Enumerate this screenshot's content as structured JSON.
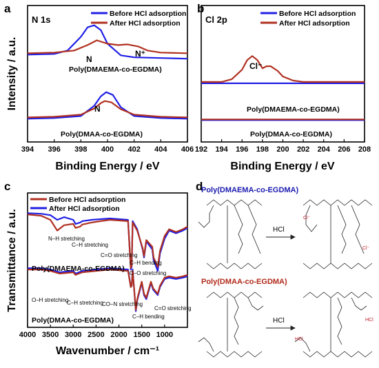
{
  "colors": {
    "before": "#1f1fe6",
    "after": "#b03020",
    "axis": "#000000",
    "blue_title": "#1a1ab0",
    "red_title": "#b02a1a"
  },
  "panels": {
    "a": {
      "letter": "a",
      "core": "N 1s",
      "legend": [
        "Before HCl adsorption",
        "After HCl adsorption"
      ],
      "sample_top": "Poly(DMAEMA-co-EGDMA)",
      "sample_bottom": "Poly(DMAA-co-EGDMA)",
      "peak_n_top": "N",
      "peak_nplus": "N⁺",
      "peak_n_bottom": "N"
    },
    "b": {
      "letter": "b",
      "core": "Cl 2p",
      "legend": [
        "Before HCl adsorption",
        "After HCl adsorption"
      ],
      "peak_cl": "Cl⁻",
      "sample_top": "Poly(DMAEMA-co-EGDMA)",
      "sample_bottom": "Poly(DMAA-co-EGDMA)"
    },
    "c": {
      "letter": "c",
      "legend": [
        "Before HCl adsorption",
        "After HCl adsorption"
      ],
      "sample_top": "Poly(DMAEMA-co-EGDMA)",
      "sample_bottom": "Poly(DMAA-co-EGDMA)",
      "annotations_top": [
        "N–H stretching",
        "C–H stretching",
        "C=O stretching",
        "C–H bending",
        "C–O stretching"
      ],
      "annotations_bottom": [
        "O–H stretching",
        "C–H stretching",
        "CO–N stretching",
        "C–H bending",
        "C=O stretching"
      ]
    },
    "d": {
      "letter": "d",
      "title_top": "Poly(DMAEMA-co-EGDMA)",
      "title_bottom": "Poly(DMAA-co-EGDMA)",
      "reagent": "HCl",
      "hcl_label": "HCl",
      "cl_minus": "Cl⁻"
    }
  },
  "chart_data": [
    {
      "type": "line",
      "panel": "a",
      "title": "N 1s",
      "xlabel": "Binding Energy / eV",
      "ylabel": "Intensity / a.u.",
      "xlim": [
        394,
        406
      ],
      "xticks": [
        394,
        396,
        398,
        400,
        402,
        404,
        406
      ],
      "x_reversed": false,
      "legend_position": "top-right",
      "series": [
        {
          "name": "Before HCl adsorption",
          "sample": "Poly(DMAEMA-co-EGDMA)",
          "x": [
            394,
            396,
            397,
            398,
            398.5,
            399,
            399.5,
            400,
            401,
            402,
            404,
            406
          ],
          "y": [
            0.64,
            0.645,
            0.67,
            0.77,
            0.84,
            0.855,
            0.82,
            0.72,
            0.635,
            0.62,
            0.615,
            0.61
          ]
        },
        {
          "name": "After HCl adsorption",
          "sample": "Poly(DMAEMA-co-EGDMA)",
          "x": [
            394,
            396,
            397.5,
            398.5,
            399.2,
            400,
            400.8,
            401.5,
            402.3,
            403,
            404,
            406
          ],
          "y": [
            0.65,
            0.655,
            0.67,
            0.71,
            0.745,
            0.72,
            0.71,
            0.715,
            0.7,
            0.67,
            0.655,
            0.65
          ]
        },
        {
          "name": "Before HCl adsorption",
          "sample": "Poly(DMAA-co-EGDMA)",
          "x": [
            394,
            396,
            398,
            399,
            399.5,
            399.9,
            400.4,
            401,
            402,
            404,
            406
          ],
          "y": [
            0.17,
            0.175,
            0.19,
            0.265,
            0.335,
            0.365,
            0.345,
            0.255,
            0.19,
            0.175,
            0.17
          ]
        },
        {
          "name": "After HCl adsorption",
          "sample": "Poly(DMAA-co-EGDMA)",
          "x": [
            394,
            396,
            398,
            399,
            399.5,
            399.8,
            400.3,
            401,
            402,
            404,
            406
          ],
          "y": [
            0.18,
            0.185,
            0.2,
            0.245,
            0.285,
            0.3,
            0.29,
            0.24,
            0.2,
            0.185,
            0.18
          ]
        }
      ]
    },
    {
      "type": "line",
      "panel": "b",
      "title": "Cl 2p",
      "xlabel": "Binding Energy / eV",
      "ylabel": "",
      "xlim": [
        192,
        208
      ],
      "xticks": [
        192,
        194,
        196,
        198,
        200,
        202,
        204,
        206,
        208
      ],
      "legend_position": "top-right",
      "series": [
        {
          "name": "Before HCl adsorption",
          "sample": "Poly(DMAEMA-co-EGDMA)",
          "x": [
            192,
            208
          ],
          "y": [
            0.43,
            0.43
          ]
        },
        {
          "name": "After HCl adsorption",
          "sample": "Poly(DMAEMA-co-EGDMA)",
          "x": [
            192,
            194,
            195,
            196,
            196.5,
            197,
            197.5,
            198,
            198.4,
            198.8,
            199.5,
            200,
            201,
            202,
            204,
            208
          ],
          "y": [
            0.44,
            0.44,
            0.46,
            0.53,
            0.6,
            0.63,
            0.6,
            0.54,
            0.555,
            0.555,
            0.52,
            0.48,
            0.45,
            0.44,
            0.44,
            0.44
          ]
        },
        {
          "name": "Before HCl adsorption",
          "sample": "Poly(DMAA-co-EGDMA)",
          "x": [
            192,
            208
          ],
          "y": [
            0.16,
            0.16
          ]
        },
        {
          "name": "After HCl adsorption",
          "sample": "Poly(DMAA-co-EGDMA)",
          "x": [
            192,
            208
          ],
          "y": [
            0.165,
            0.165
          ]
        }
      ]
    },
    {
      "type": "line",
      "panel": "c",
      "title": "",
      "xlabel": "Wavenumber / cm⁻¹",
      "ylabel": "Transmittance / a.u.",
      "xlim": [
        4000,
        500
      ],
      "xticks": [
        4000,
        3500,
        3000,
        2500,
        2000,
        1500,
        1000
      ],
      "x_reversed": true,
      "legend_position": "top-left",
      "series": [
        {
          "name": "Before HCl adsorption",
          "sample": "Poly(DMAEMA-co-EGDMA)",
          "x": [
            4000,
            3700,
            3500,
            3350,
            3200,
            3000,
            2950,
            2850,
            2800,
            2600,
            2400,
            2200,
            1800,
            1740,
            1720,
            1700,
            1600,
            1480,
            1450,
            1400,
            1270,
            1240,
            1150,
            1100,
            1000,
            900,
            750,
            600,
            500
          ],
          "y": [
            0.85,
            0.845,
            0.835,
            0.8,
            0.82,
            0.8,
            0.77,
            0.78,
            0.79,
            0.8,
            0.805,
            0.81,
            0.8,
            0.43,
            0.45,
            0.79,
            0.73,
            0.58,
            0.52,
            0.64,
            0.58,
            0.5,
            0.42,
            0.55,
            0.66,
            0.72,
            0.7,
            0.72,
            0.74
          ]
        },
        {
          "name": "After HCl adsorption",
          "sample": "Poly(DMAEMA-co-EGDMA)",
          "x": [
            4000,
            3700,
            3500,
            3350,
            3200,
            3000,
            2950,
            2850,
            2800,
            2600,
            2400,
            2200,
            1800,
            1740,
            1720,
            1700,
            1600,
            1480,
            1450,
            1400,
            1270,
            1240,
            1150,
            1100,
            1000,
            900,
            750,
            600,
            500
          ],
          "y": [
            0.84,
            0.83,
            0.8,
            0.72,
            0.76,
            0.77,
            0.74,
            0.75,
            0.765,
            0.78,
            0.79,
            0.8,
            0.79,
            0.44,
            0.46,
            0.78,
            0.72,
            0.59,
            0.53,
            0.65,
            0.6,
            0.52,
            0.45,
            0.57,
            0.68,
            0.73,
            0.71,
            0.73,
            0.75
          ]
        },
        {
          "name": "Before HCl adsorption",
          "sample": "Poly(DMAA-co-EGDMA)",
          "x": [
            4000,
            3700,
            3500,
            3300,
            3000,
            2950,
            2800,
            2500,
            2200,
            1800,
            1740,
            1720,
            1700,
            1630,
            1600,
            1500,
            1450,
            1400,
            1300,
            1250,
            1150,
            1100,
            1000,
            900,
            750,
            600,
            500
          ],
          "y": [
            0.44,
            0.44,
            0.43,
            0.41,
            0.42,
            0.4,
            0.42,
            0.43,
            0.44,
            0.43,
            0.3,
            0.31,
            0.43,
            0.12,
            0.2,
            0.33,
            0.24,
            0.21,
            0.33,
            0.28,
            0.24,
            0.3,
            0.36,
            0.37,
            0.36,
            0.37,
            0.38
          ]
        },
        {
          "name": "After HCl adsorption",
          "sample": "Poly(DMAA-co-EGDMA)",
          "x": [
            4000,
            3700,
            3500,
            3300,
            3000,
            2950,
            2800,
            2500,
            2200,
            1800,
            1740,
            1720,
            1700,
            1630,
            1600,
            1500,
            1450,
            1400,
            1300,
            1250,
            1150,
            1100,
            1000,
            900,
            750,
            600,
            500
          ],
          "y": [
            0.43,
            0.43,
            0.42,
            0.4,
            0.41,
            0.39,
            0.41,
            0.42,
            0.43,
            0.42,
            0.3,
            0.31,
            0.42,
            0.13,
            0.21,
            0.34,
            0.25,
            0.22,
            0.34,
            0.29,
            0.25,
            0.31,
            0.37,
            0.38,
            0.37,
            0.38,
            0.39
          ]
        }
      ]
    }
  ]
}
